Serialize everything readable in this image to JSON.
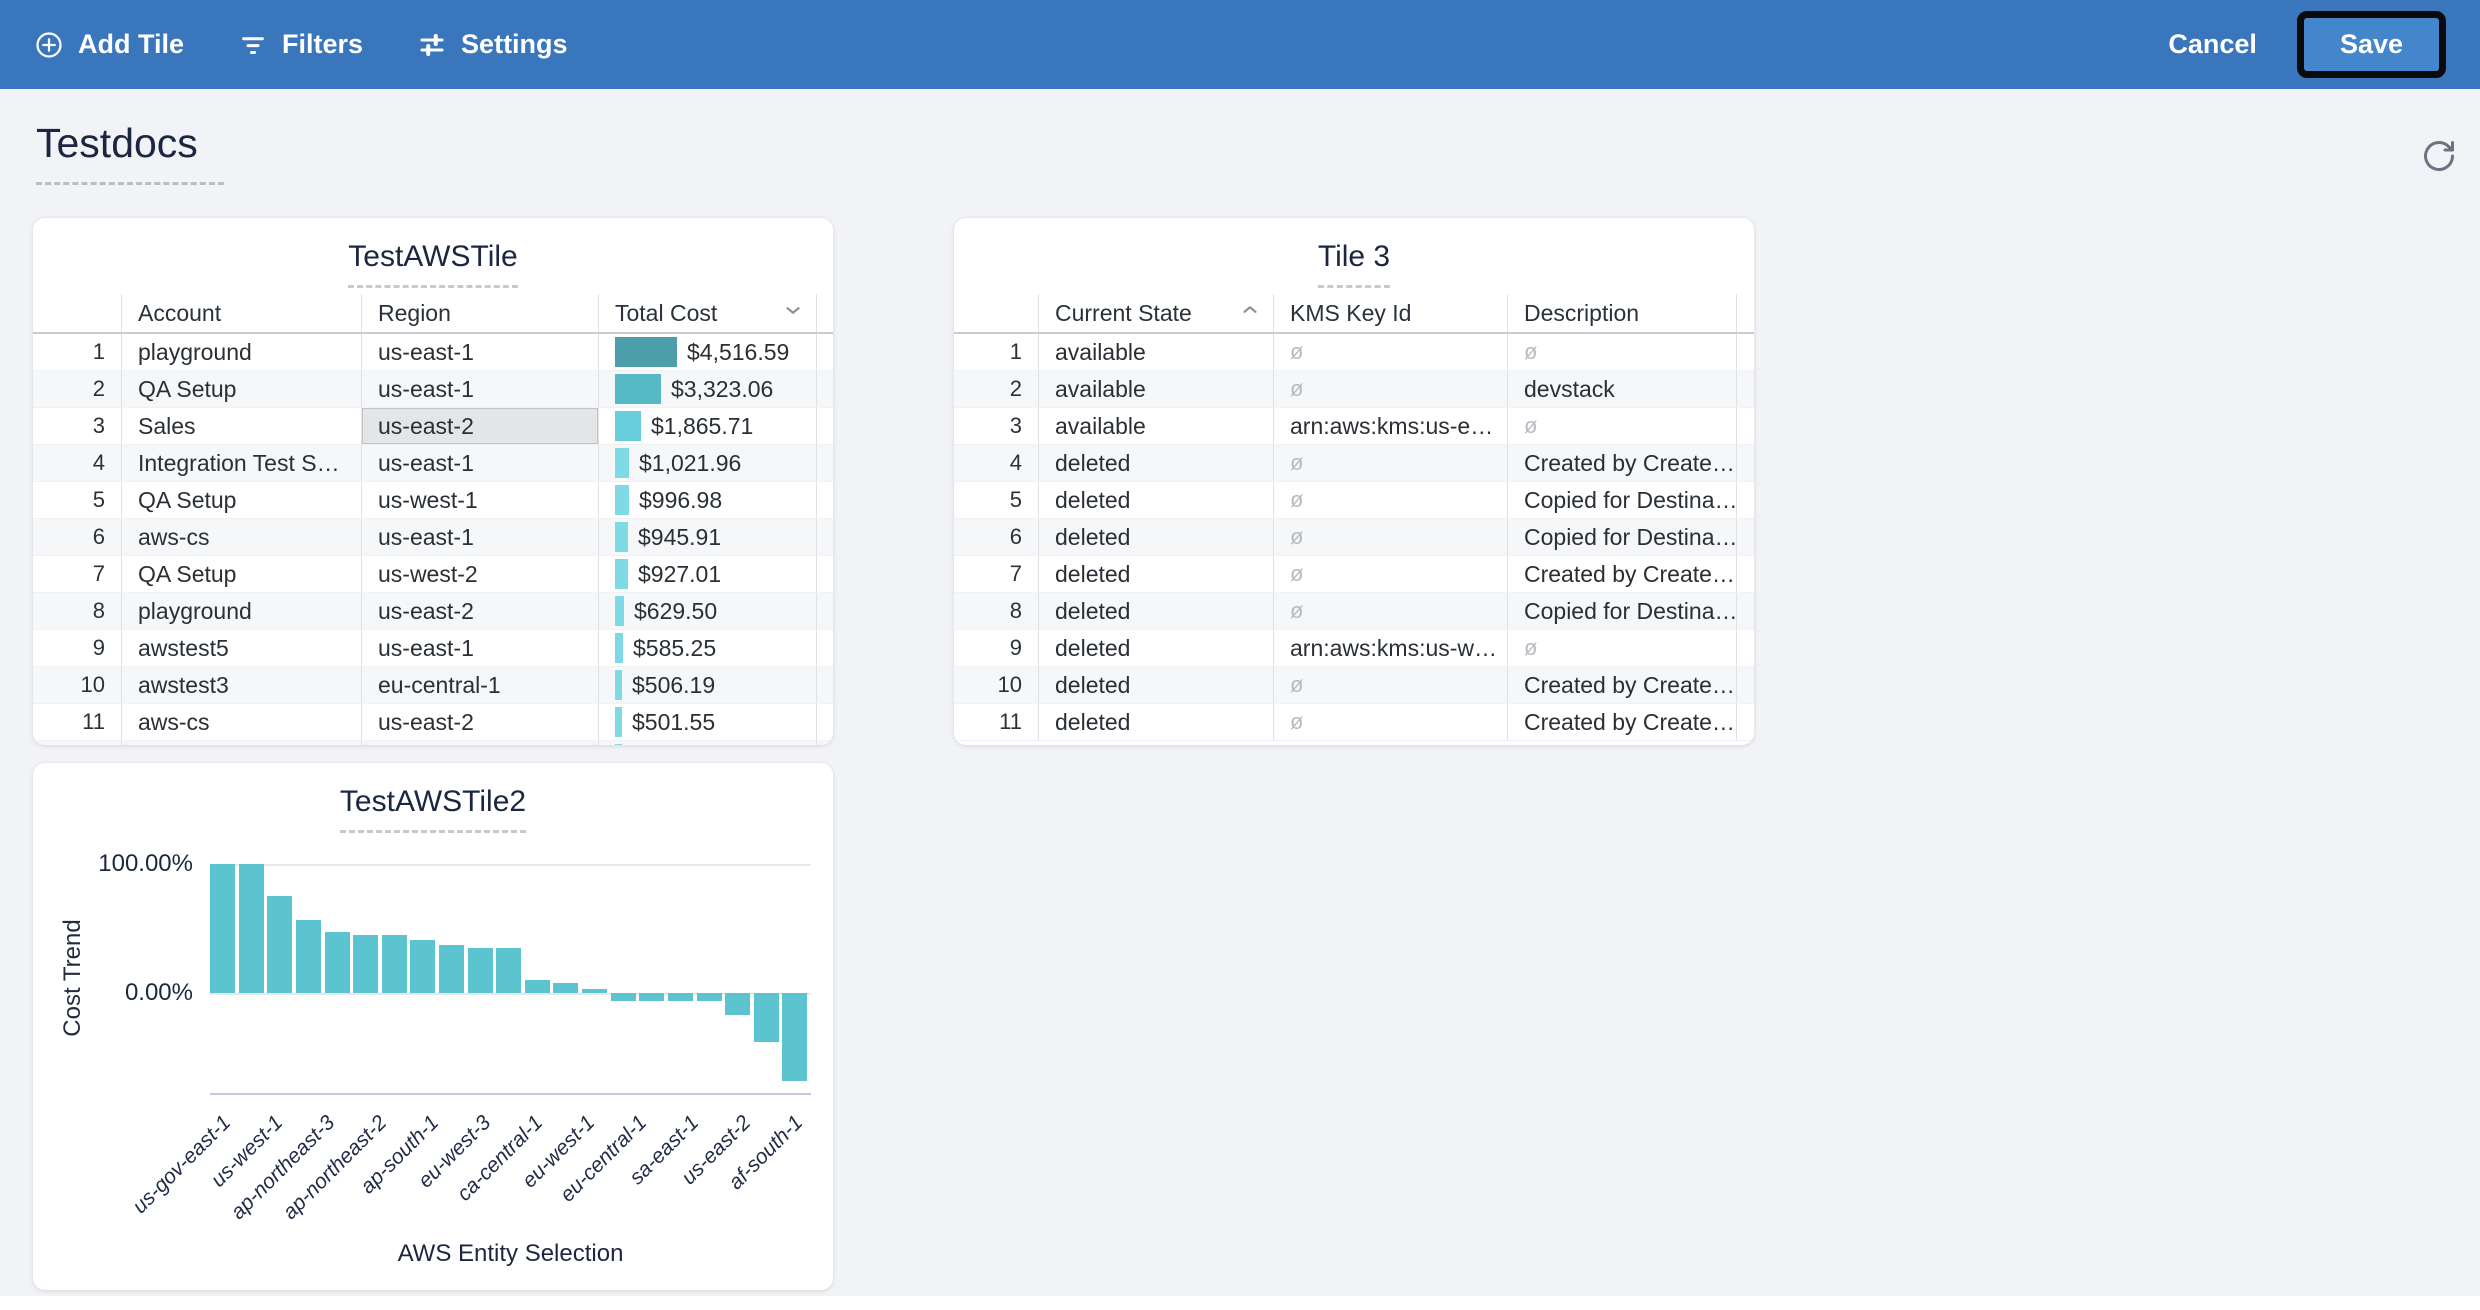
{
  "toolbar": {
    "add_tile": "Add Tile",
    "filters": "Filters",
    "settings": "Settings",
    "cancel": "Cancel",
    "save": "Save",
    "bg_color": "#3A76BC",
    "save_bg_color": "#4486CC"
  },
  "page": {
    "title": "Testdocs"
  },
  "aws_tile": {
    "title": "TestAWSTile",
    "columns": [
      "Account",
      "Region",
      "Total Cost"
    ],
    "sort": {
      "column": "Total Cost",
      "direction": "desc"
    },
    "selected_cell": {
      "row": 3,
      "column": "Region"
    },
    "rows": [
      {
        "num": 1,
        "account": "playground",
        "region": "us-east-1",
        "cost": 4516.59,
        "cost_label": "$4,516.59",
        "bar_color": "#4C9EAB"
      },
      {
        "num": 2,
        "account": "QA Setup",
        "region": "us-east-1",
        "cost": 3323.06,
        "cost_label": "$3,323.06",
        "bar_color": "#58B9C6"
      },
      {
        "num": 3,
        "account": "Sales",
        "region": "us-east-2",
        "cost": 1865.71,
        "cost_label": "$1,865.71",
        "bar_color": "#68CEDB"
      },
      {
        "num": 4,
        "account": "Integration Test S…",
        "region": "us-east-1",
        "cost": 1021.96,
        "cost_label": "$1,021.96",
        "bar_color": "#7EDAE4"
      },
      {
        "num": 5,
        "account": "QA Setup",
        "region": "us-west-1",
        "cost": 996.98,
        "cost_label": "$996.98",
        "bar_color": "#7EDAE4"
      },
      {
        "num": 6,
        "account": "aws-cs",
        "region": "us-east-1",
        "cost": 945.91,
        "cost_label": "$945.91",
        "bar_color": "#7EDAE4"
      },
      {
        "num": 7,
        "account": "QA Setup",
        "region": "us-west-2",
        "cost": 927.01,
        "cost_label": "$927.01",
        "bar_color": "#7EDAE4"
      },
      {
        "num": 8,
        "account": "playground",
        "region": "us-east-2",
        "cost": 629.5,
        "cost_label": "$629.50",
        "bar_color": "#7EDAE4"
      },
      {
        "num": 9,
        "account": "awstest5",
        "region": "us-east-1",
        "cost": 585.25,
        "cost_label": "$585.25",
        "bar_color": "#7EDAE4"
      },
      {
        "num": 10,
        "account": "awstest3",
        "region": "eu-central-1",
        "cost": 506.19,
        "cost_label": "$506.19",
        "bar_color": "#7EDAE4"
      },
      {
        "num": 11,
        "account": "aws-cs",
        "region": "us-east-2",
        "cost": 501.55,
        "cost_label": "$501.55",
        "bar_color": "#7EDAE4"
      }
    ]
  },
  "tile3": {
    "title": "Tile 3",
    "columns": [
      "Current State",
      "KMS Key Id",
      "Description"
    ],
    "sort": {
      "column": "Current State",
      "direction": "asc"
    },
    "null_symbol": "ø",
    "rows": [
      {
        "num": 1,
        "state": "available",
        "kms": null,
        "description": null
      },
      {
        "num": 2,
        "state": "available",
        "kms": null,
        "description": "devstack"
      },
      {
        "num": 3,
        "state": "available",
        "kms": "arn:aws:kms:us-e…",
        "description": null
      },
      {
        "num": 4,
        "state": "deleted",
        "kms": null,
        "description": "Created by Create…"
      },
      {
        "num": 5,
        "state": "deleted",
        "kms": null,
        "description": "Copied for Destina…"
      },
      {
        "num": 6,
        "state": "deleted",
        "kms": null,
        "description": "Copied for Destina…"
      },
      {
        "num": 7,
        "state": "deleted",
        "kms": null,
        "description": "Created by Create…"
      },
      {
        "num": 8,
        "state": "deleted",
        "kms": null,
        "description": "Copied for Destina…"
      },
      {
        "num": 9,
        "state": "deleted",
        "kms": "arn:aws:kms:us-w…",
        "description": null
      },
      {
        "num": 10,
        "state": "deleted",
        "kms": null,
        "description": "Created by Create…"
      },
      {
        "num": 11,
        "state": "deleted",
        "kms": null,
        "description": "Created by Create…"
      }
    ]
  },
  "chart_data": {
    "type": "bar",
    "title": "TestAWSTile2",
    "xlabel": "AWS Entity Selection",
    "ylabel": "Cost Trend",
    "yticks": [
      "100.00%",
      "0.00%"
    ],
    "ylim": [
      -78,
      108
    ],
    "grid": "horizontal-at-ticks",
    "bar_color": "#5BC4CF",
    "values": [
      100,
      100,
      75,
      57,
      47,
      45,
      45,
      41,
      37,
      35,
      35,
      10,
      8,
      3,
      -6,
      -6,
      -6,
      -6,
      -17,
      -38,
      -68
    ],
    "x_tick_labels": [
      "us-gov-east-1",
      "us-west-1",
      "ap-northeast-3",
      "ap-northeast-2",
      "ap-south-1",
      "eu-west-3",
      "ca-central-1",
      "eu-west-1",
      "eu-central-1",
      "sa-east-1",
      "us-east-2",
      "af-south-1"
    ]
  }
}
